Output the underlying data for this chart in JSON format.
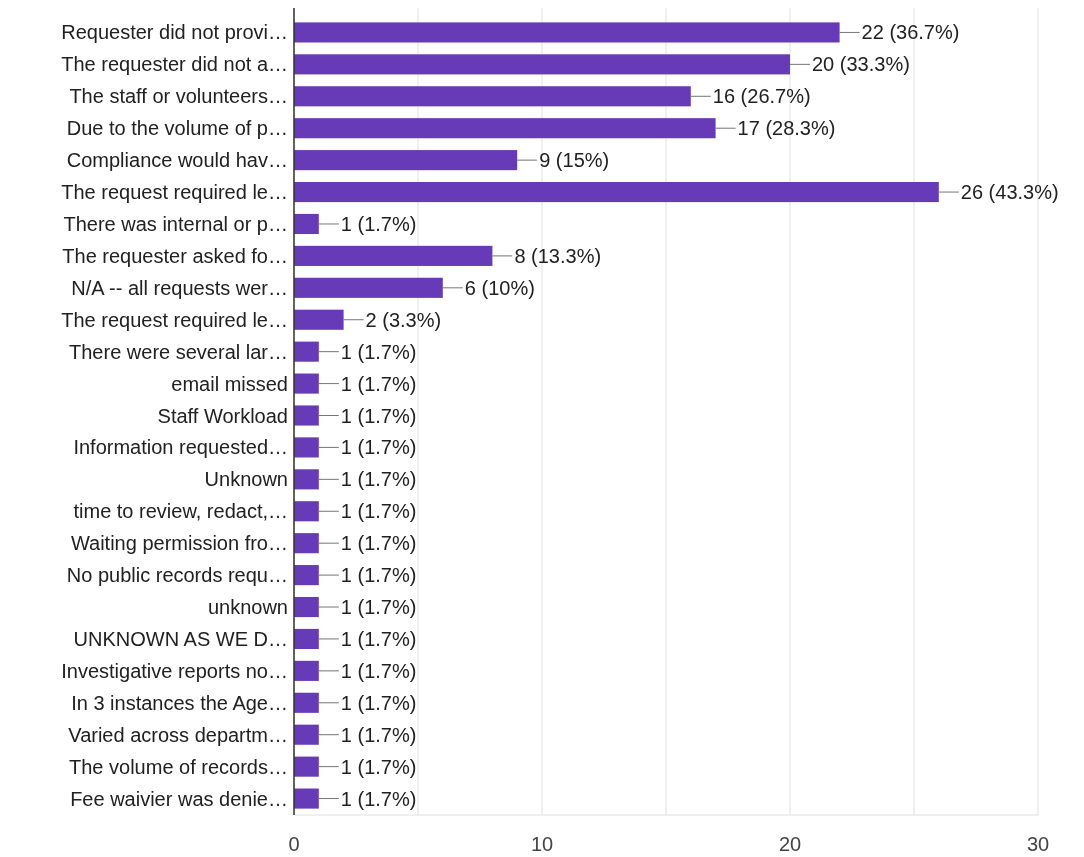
{
  "chart_data": {
    "type": "bar",
    "orientation": "horizontal",
    "categories": [
      "Requester did not provi…",
      "The requester did not a…",
      "The staff or volunteers…",
      "Due to the volume of p…",
      "Compliance would hav…",
      "The request required le…",
      "There was internal or p…",
      "The requester asked fo…",
      "N/A -- all requests wer…",
      "The request required le…",
      "There were several lar…",
      "email missed",
      "Staff Workload",
      "Information requested…",
      "Unknown",
      "time to review, redact,…",
      "Waiting permission fro…",
      "No public records requ…",
      "unknown",
      "UNKNOWN AS WE D…",
      "Investigative reports no…",
      "In 3 instances the Age…",
      "Varied across departm…",
      "The volume of records…",
      "Fee waivier was denie…"
    ],
    "values": [
      22,
      20,
      16,
      17,
      9,
      26,
      1,
      8,
      6,
      2,
      1,
      1,
      1,
      1,
      1,
      1,
      1,
      1,
      1,
      1,
      1,
      1,
      1,
      1,
      1
    ],
    "value_labels": [
      "22 (36.7%)",
      "20 (33.3%)",
      "16 (26.7%)",
      "17 (28.3%)",
      "9 (15%)",
      "26 (43.3%)",
      "1 (1.7%)",
      "8 (13.3%)",
      "6 (10%)",
      "2 (3.3%)",
      "1 (1.7%)",
      "1 (1.7%)",
      "1 (1.7%)",
      "1 (1.7%)",
      "1 (1.7%)",
      "1 (1.7%)",
      "1 (1.7%)",
      "1 (1.7%)",
      "1 (1.7%)",
      "1 (1.7%)",
      "1 (1.7%)",
      "1 (1.7%)",
      "1 (1.7%)",
      "1 (1.7%)",
      "1 (1.7%)"
    ],
    "color": "#673ab7",
    "xlim": [
      0,
      30
    ],
    "xticks": [
      0,
      {
        "value": 5,
        "label": null
      },
      10,
      {
        "value": 15,
        "label": null
      },
      20,
      {
        "value": 25,
        "label": null
      },
      30
    ],
    "grid": "x"
  }
}
